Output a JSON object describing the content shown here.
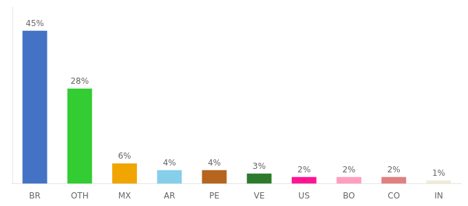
{
  "chart_data": {
    "type": "bar",
    "categories": [
      "BR",
      "OTH",
      "MX",
      "AR",
      "PE",
      "VE",
      "US",
      "BO",
      "CO",
      "IN"
    ],
    "values": [
      45,
      28,
      6,
      4,
      4,
      3,
      2,
      2,
      2,
      1
    ],
    "value_labels": [
      "45%",
      "28%",
      "6%",
      "4%",
      "4%",
      "3%",
      "2%",
      "2%",
      "2%",
      "1%"
    ],
    "colors": [
      "#4472c4",
      "#33cc33",
      "#f0a500",
      "#87ceeb",
      "#b5651d",
      "#2d7a2d",
      "#ff1493",
      "#ff9ec0",
      "#e08080",
      "#f0ead8"
    ],
    "ylim": [
      0,
      52
    ],
    "data_labels": true,
    "tick_labels": "x",
    "grid": false
  }
}
